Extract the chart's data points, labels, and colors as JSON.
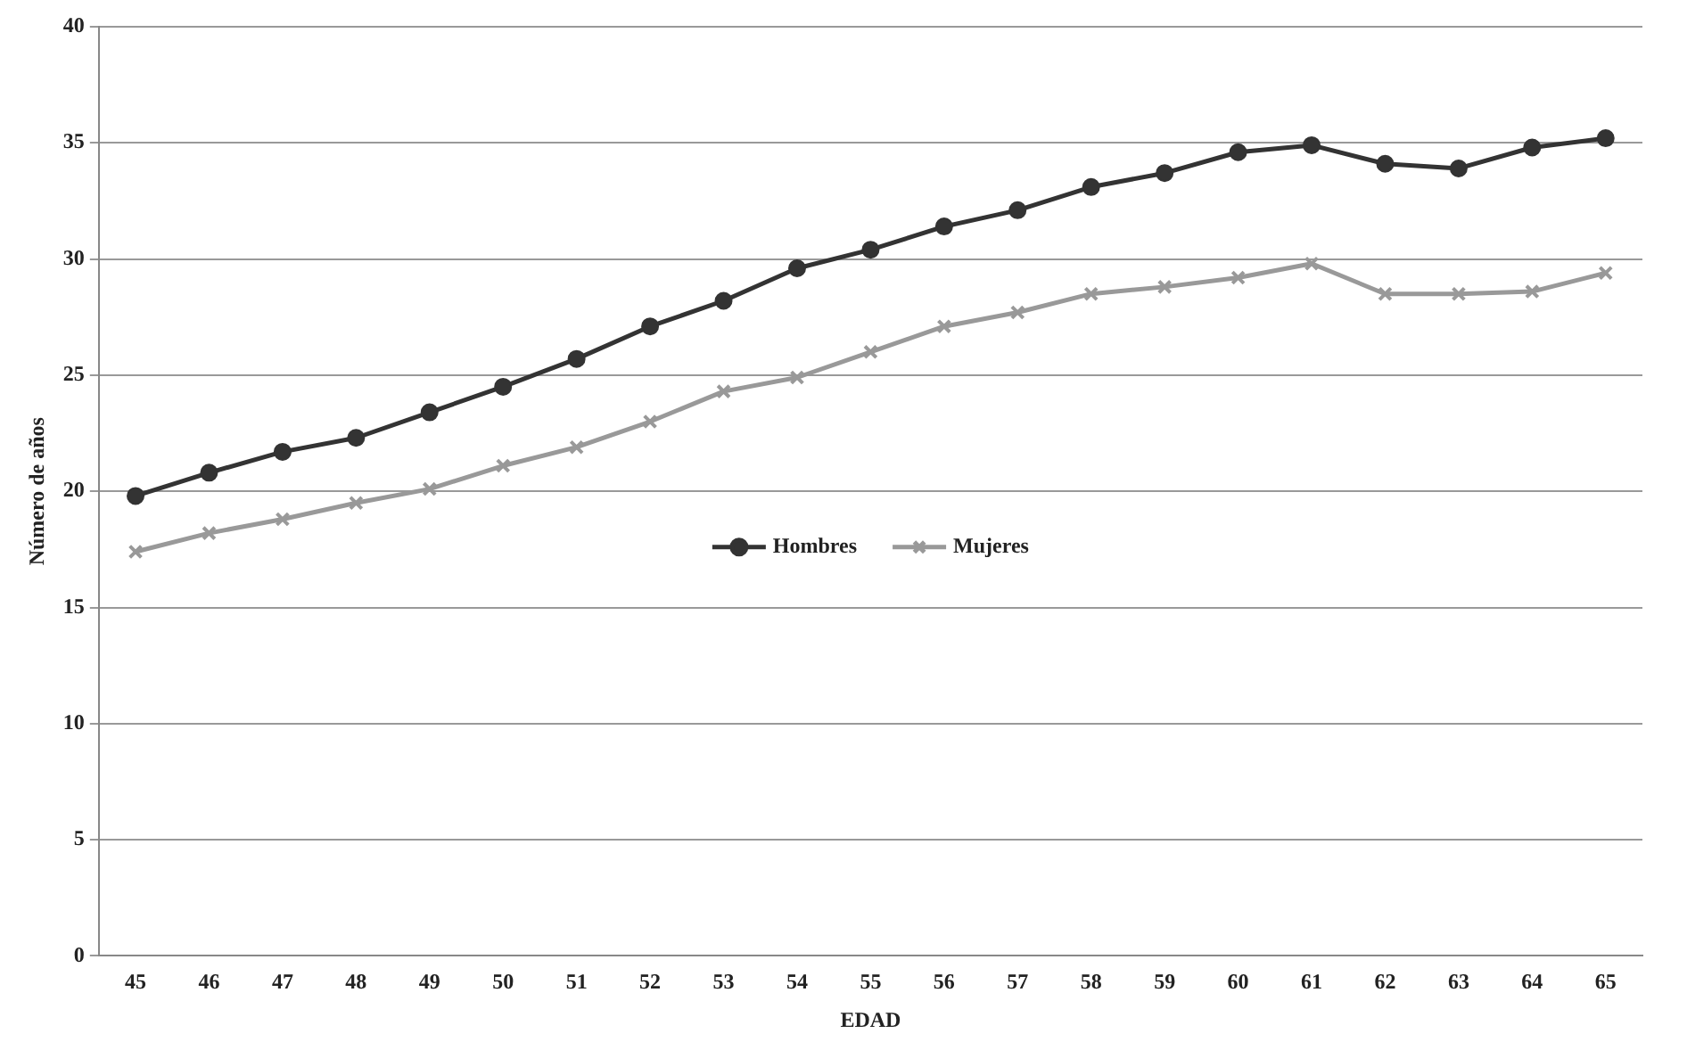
{
  "chart_data": {
    "type": "line",
    "xlabel": "EDAD",
    "ylabel": "Número de años",
    "categories": [
      "45",
      "46",
      "47",
      "48",
      "49",
      "50",
      "51",
      "52",
      "53",
      "54",
      "55",
      "56",
      "57",
      "58",
      "59",
      "60",
      "61",
      "62",
      "63",
      "64",
      "65"
    ],
    "series": [
      {
        "name": "Hombres",
        "color": "#333333",
        "marker": "circle",
        "values": [
          19.8,
          20.8,
          21.7,
          22.3,
          23.4,
          24.5,
          25.7,
          27.1,
          28.2,
          29.6,
          30.4,
          31.4,
          32.1,
          33.1,
          33.7,
          34.6,
          34.9,
          34.1,
          33.9,
          34.8,
          35.2
        ]
      },
      {
        "name": "Mujeres",
        "color": "#999999",
        "marker": "cross",
        "values": [
          17.4,
          18.2,
          18.8,
          19.5,
          20.1,
          21.1,
          21.9,
          23.0,
          24.3,
          24.9,
          26.0,
          27.1,
          27.7,
          28.5,
          28.8,
          29.2,
          29.8,
          28.5,
          28.5,
          28.6,
          29.4
        ]
      }
    ],
    "ylim": [
      0,
      40
    ],
    "yticks": [
      0,
      5,
      10,
      15,
      20,
      25,
      30,
      35,
      40
    ],
    "grid": "y",
    "legend": "center",
    "line_style": "solid"
  }
}
